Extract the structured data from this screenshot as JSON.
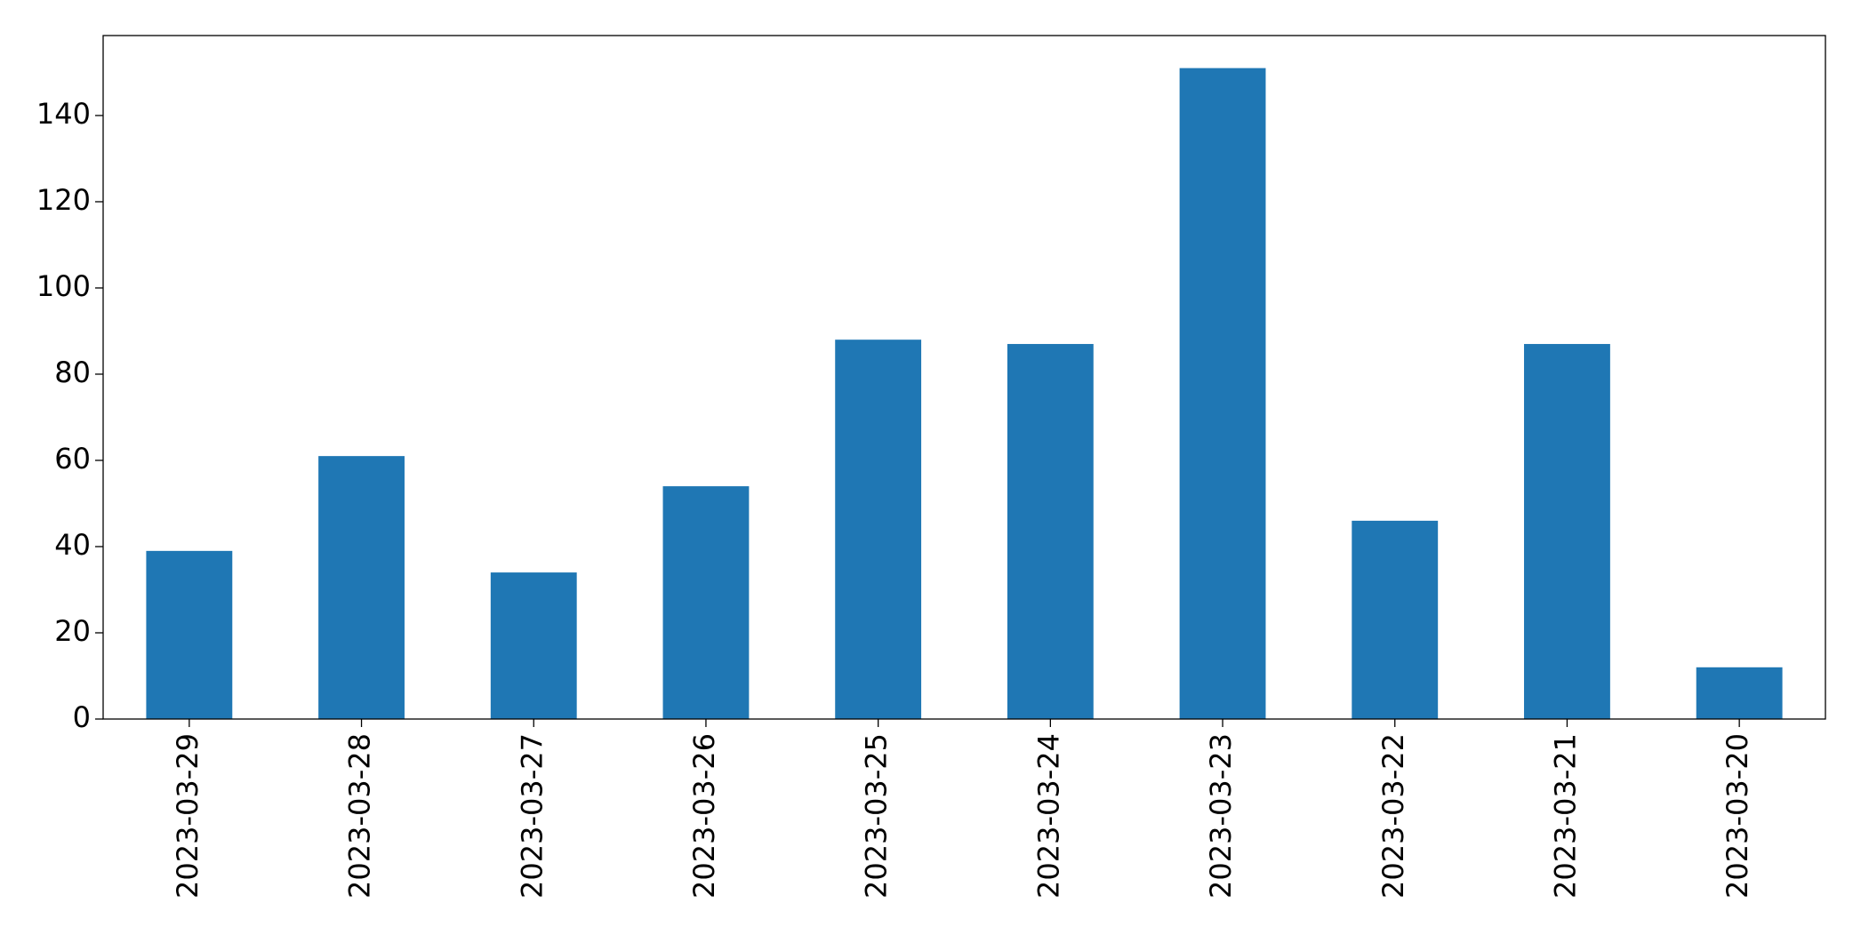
{
  "chart_data": {
    "type": "bar",
    "categories": [
      "2023-03-29",
      "2023-03-28",
      "2023-03-27",
      "2023-03-26",
      "2023-03-25",
      "2023-03-24",
      "2023-03-23",
      "2023-03-22",
      "2023-03-21",
      "2023-03-20"
    ],
    "values": [
      39,
      61,
      34,
      54,
      88,
      87,
      151,
      46,
      87,
      12
    ],
    "color": "#1f77b4",
    "ylim": [
      0,
      158.55
    ],
    "yticks": [
      0,
      20,
      40,
      60,
      80,
      100,
      120,
      140
    ],
    "grid": false
  }
}
